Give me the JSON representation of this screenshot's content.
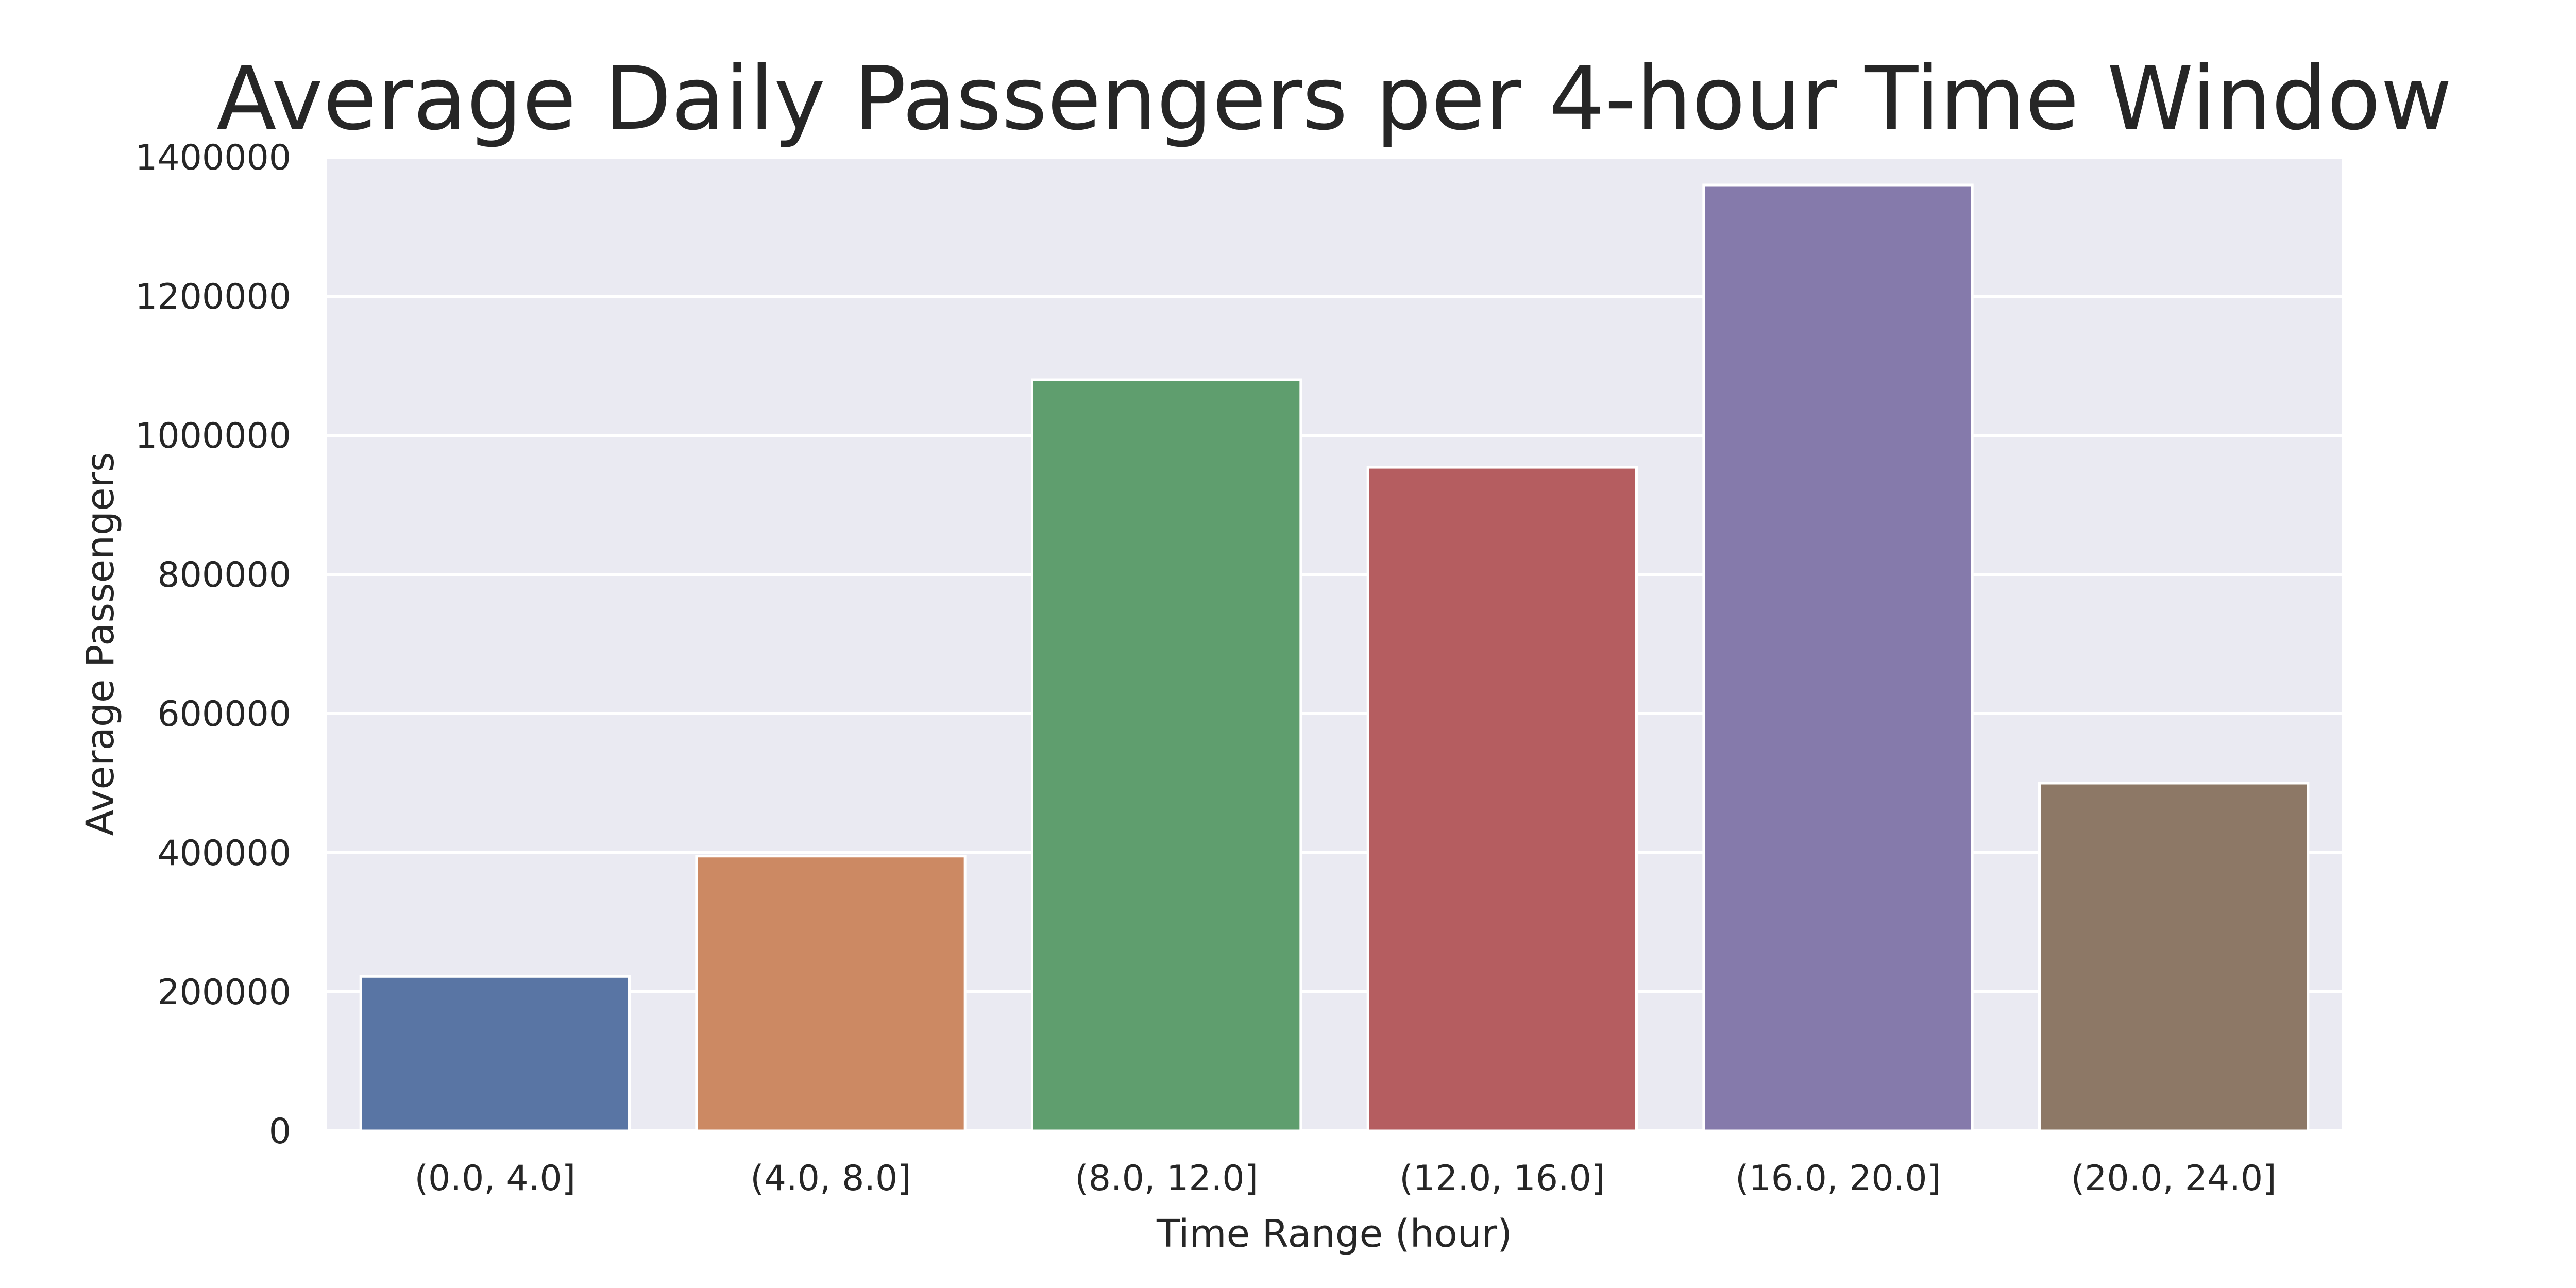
{
  "chart_data": {
    "type": "bar",
    "title": "Average Daily Passengers per 4-hour Time Window",
    "xlabel": "Time Range (hour)",
    "ylabel": "Average Passengers",
    "categories": [
      "(0.0, 4.0]",
      "(4.0, 8.0]",
      "(8.0, 12.0]",
      "(12.0, 16.0]",
      "(16.0, 20.0]",
      "(20.0, 24.0]"
    ],
    "values": [
      222000,
      395000,
      1080000,
      954000,
      1360000,
      500000
    ],
    "colors": [
      "#5975a4",
      "#cc8963",
      "#5f9e6e",
      "#b55d60",
      "#857aab",
      "#8d7866"
    ],
    "ylim": [
      0,
      1400000
    ],
    "yticks": [
      0,
      200000,
      400000,
      600000,
      800000,
      1000000,
      1200000,
      1400000
    ],
    "ytick_labels": [
      "0",
      "200000",
      "400000",
      "600000",
      "800000",
      "1000000",
      "1200000",
      "1400000"
    ],
    "grid": true,
    "background_color": "#eaeaf2",
    "grid_color": "#ffffff"
  }
}
